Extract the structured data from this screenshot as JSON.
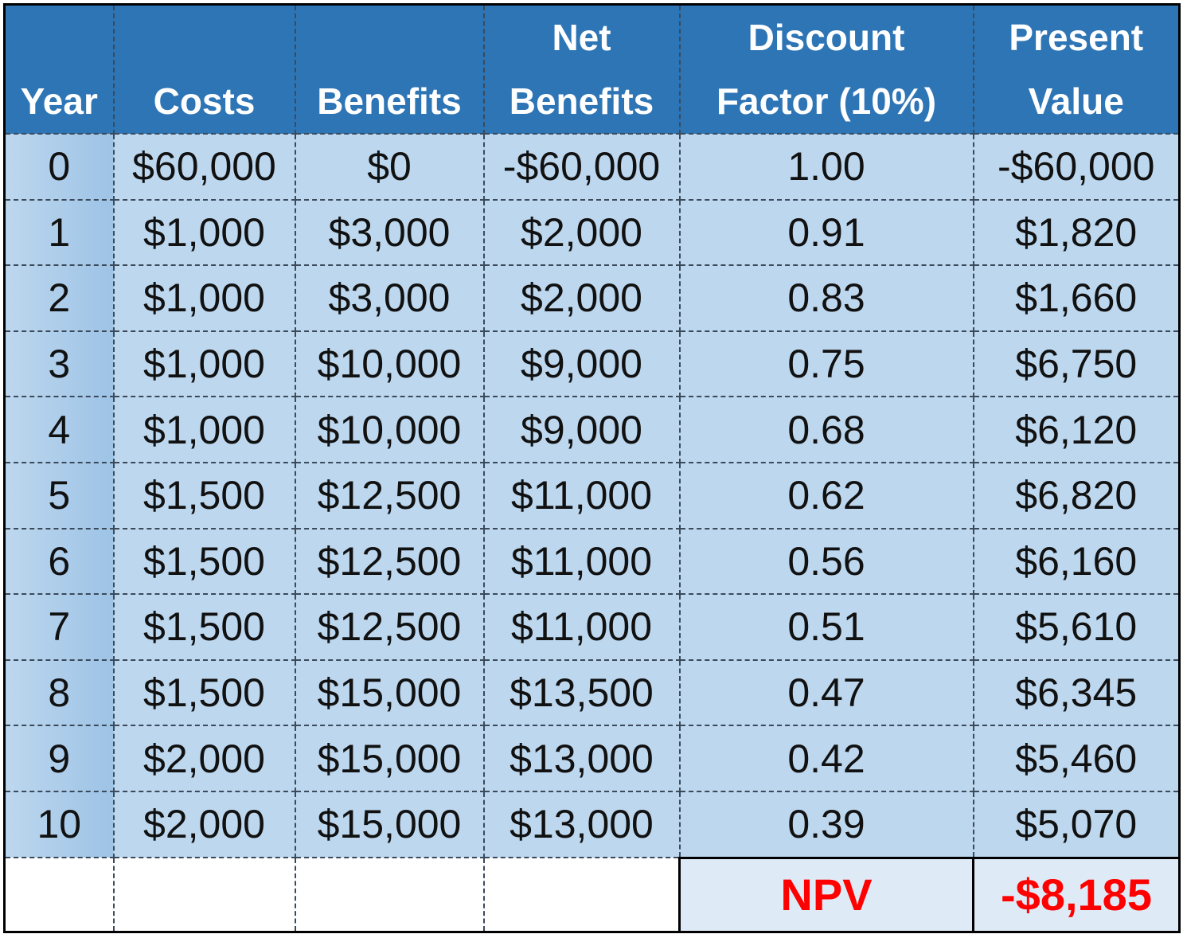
{
  "table": {
    "header": [
      [
        "Year"
      ],
      [
        "Costs"
      ],
      [
        "Benefits"
      ],
      [
        "Net",
        "Benefits"
      ],
      [
        "Discount",
        "Factor (10%)"
      ],
      [
        "Present",
        "Value"
      ]
    ],
    "rows": [
      [
        "0",
        "$60,000",
        "$0",
        "-$60,000",
        "1.00",
        "-$60,000"
      ],
      [
        "1",
        "$1,000",
        "$3,000",
        "$2,000",
        "0.91",
        "$1,820"
      ],
      [
        "2",
        "$1,000",
        "$3,000",
        "$2,000",
        "0.83",
        "$1,660"
      ],
      [
        "3",
        "$1,000",
        "$10,000",
        "$9,000",
        "0.75",
        "$6,750"
      ],
      [
        "4",
        "$1,000",
        "$10,000",
        "$9,000",
        "0.68",
        "$6,120"
      ],
      [
        "5",
        "$1,500",
        "$12,500",
        "$11,000",
        "0.62",
        "$6,820"
      ],
      [
        "6",
        "$1,500",
        "$12,500",
        "$11,000",
        "0.56",
        "$6,160"
      ],
      [
        "7",
        "$1,500",
        "$12,500",
        "$11,000",
        "0.51",
        "$5,610"
      ],
      [
        "8",
        "$1,500",
        "$15,000",
        "$13,500",
        "0.47",
        "$6,345"
      ],
      [
        "9",
        "$2,000",
        "$15,000",
        "$13,000",
        "0.42",
        "$5,460"
      ],
      [
        "10",
        "$2,000",
        "$15,000",
        "$13,000",
        "0.39",
        "$5,070"
      ]
    ],
    "summary": {
      "label": "NPV",
      "value": "-$8,185"
    }
  }
}
